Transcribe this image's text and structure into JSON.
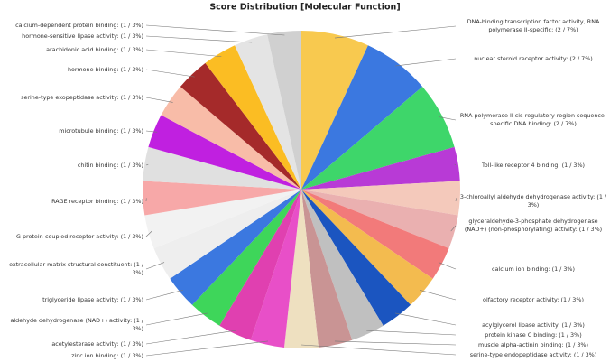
{
  "chart_data": {
    "type": "pie",
    "title": "Score Distribution [Molecular Function]",
    "categories": [
      "DNA-binding transcription factor activity, RNA polymerase II-specific",
      "nuclear steroid receptor activity",
      "RNA polymerase II cis-regulatory region sequence-specific DNA binding",
      "Toll-like receptor 4 binding",
      "3-chloroallyl aldehyde dehydrogenase activity",
      "glyceraldehyde-3-phosphate dehydrogenase (NAD+) (non-phosphorylating) activity",
      "calcium ion binding",
      "olfactory receptor activity",
      "acylglycerol lipase activity",
      "protein kinase C binding",
      "muscle alpha-actinin binding",
      "serine-type endopeptidase activity",
      "zinc ion binding",
      "acetylesterase activity",
      "aldehyde dehydrogenase (NAD+) activity",
      "triglyceride lipase activity",
      "extracellular matrix structural constituent",
      "G protein-coupled receptor activity",
      "RAGE receptor binding",
      "chitin binding",
      "microtubule binding",
      "serine-type exopeptidase activity",
      "hormone binding",
      "arachidonic acid binding",
      "hormone-sensitive lipase activity",
      "calcium-dependent protein binding"
    ],
    "values": [
      2,
      2,
      2,
      1,
      1,
      1,
      1,
      1,
      1,
      1,
      1,
      1,
      1,
      1,
      1,
      1,
      1,
      1,
      1,
      1,
      1,
      1,
      1,
      1,
      1,
      1
    ],
    "value_labels": [
      "(2 / 7%)",
      "(2 / 7%)",
      "(2 / 7%)",
      "(1 / 3%)",
      "(1 / 3%)",
      "(1 / 3%)",
      "(1 / 3%)",
      "(1 / 3%)",
      "(1 / 3%)",
      "(1 / 3%)",
      "(1 / 3%)",
      "(1 / 3%)",
      "(1 / 3%)",
      "(1 / 3%)",
      "(1 / 3%)",
      "(1 / 3%)",
      "(1 / 3%)",
      "(1 / 3%)",
      "(1 / 3%)",
      "(1 / 3%)",
      "(1 / 3%)",
      "(1 / 3%)",
      "(1 / 3%)",
      "(1 / 3%)",
      "(1 / 3%)",
      "(1 / 3%)"
    ],
    "colors": [
      "#f8c94f",
      "#3b78e0",
      "#3ed66a",
      "#b83ad6",
      "#f4c9bb",
      "#eab0b0",
      "#f27a7a",
      "#f3bb4f",
      "#1b55c0",
      "#c0c0c0",
      "#c99494",
      "#eee0c0",
      "#e84fc8",
      "#e040b0",
      "#3ed65a",
      "#3b78e0",
      "#eeeeee",
      "#f2f2f2",
      "#f7a8a8",
      "#e0e0e0",
      "#c020e0",
      "#f8bca8",
      "#a52a2a",
      "#fbbd23",
      "#e4e4e4",
      "#d0d0d0"
    ]
  }
}
